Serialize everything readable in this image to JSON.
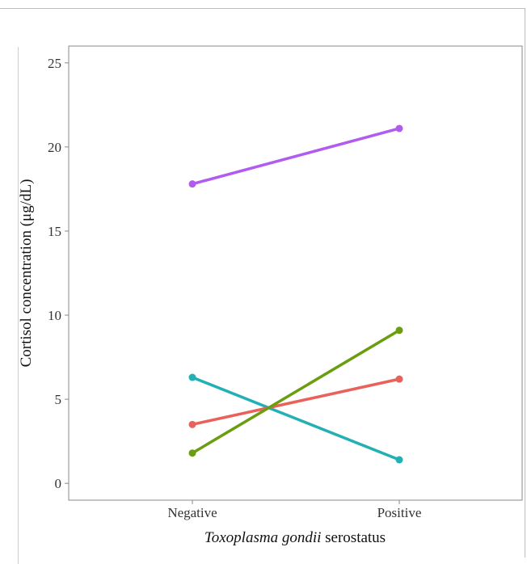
{
  "chart_data": {
    "type": "line",
    "categories": [
      "Negative",
      "Positive"
    ],
    "series": [
      {
        "values": [
          17.8,
          21.1
        ],
        "color": "#b15bf0"
      },
      {
        "values": [
          6.3,
          1.4
        ],
        "color": "#22b0b4"
      },
      {
        "values": [
          3.5,
          6.2
        ],
        "color": "#e8615a"
      },
      {
        "values": [
          1.8,
          9.1
        ],
        "color": "#6a9e10"
      }
    ],
    "xlabel_italic": "Toxoplasma gondii",
    "xlabel_rest": " serostatus",
    "ylabel": "Cortisol concentration (μg/dL)",
    "ylim": [
      -1,
      26
    ],
    "yticks": [
      0,
      5,
      10,
      15,
      20,
      25
    ],
    "grid": false
  }
}
